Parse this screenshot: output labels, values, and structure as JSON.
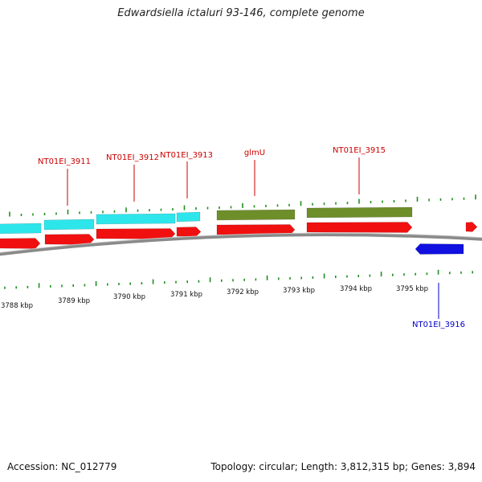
{
  "title": "Edwardsiella ictaluri 93-146, complete genome",
  "footer": {
    "accession": "Accession: NC_012779",
    "topology": "Topology: circular; Length: 3,812,315 bp; Genes: 3,894"
  },
  "colors": {
    "backbone": "#8a8a8a",
    "tick": "#1f8f1f",
    "cds_forward": "#f01010",
    "rrna_like": "#2de6ec",
    "glmU_track": "#6e8e2a",
    "reverse_gene": "#1010e0",
    "forward_label": "#cc0000",
    "reverse_label": "#0000cc"
  },
  "axis": {
    "unit": "kbp",
    "ticks": [
      "3788 kbp",
      "3789 kbp",
      "3790 kbp",
      "3791 kbp",
      "3792 kbp",
      "3793 kbp",
      "3794 kbp",
      "3795 kbp"
    ]
  },
  "gene_labels": [
    {
      "name": "NT01EI_3911",
      "strand": "forward"
    },
    {
      "name": "NT01EI_3912",
      "strand": "forward"
    },
    {
      "name": "NT01EI_3913",
      "strand": "forward"
    },
    {
      "name": "glmU",
      "strand": "forward"
    },
    {
      "name": "NT01EI_3915",
      "strand": "forward"
    },
    {
      "name": "NT01EI_3916",
      "strand": "reverse"
    }
  ]
}
